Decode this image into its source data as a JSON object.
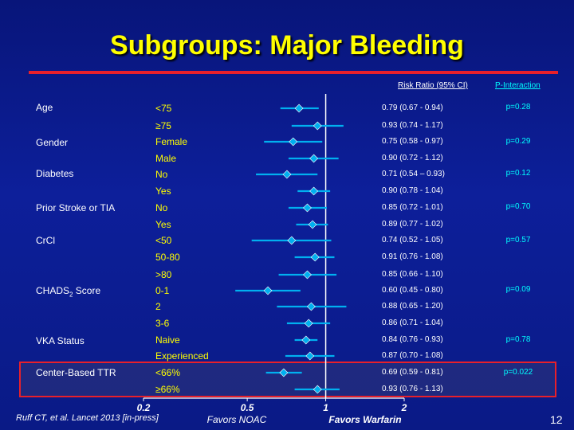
{
  "title": "Subgroups: Major Bleeding",
  "headers": {
    "rr": "Risk Ratio (95% CI)",
    "p": "P-Interaction"
  },
  "citation": "Ruff CT, et al. Lancet 2013 [in-press]",
  "page_number": "12",
  "favors": {
    "left": "Favors NOAC",
    "right": "Favors Warfarin"
  },
  "categories": [
    {
      "label": "Age",
      "p": "p=0.28"
    },
    {
      "label": "Gender",
      "p": "p=0.29"
    },
    {
      "label": "Diabetes",
      "p": "p=0.12"
    },
    {
      "label": "Prior Stroke or TIA",
      "p": "p=0.70"
    },
    {
      "label": "CrCl",
      "p": "p=0.57"
    },
    {
      "label": "CHADS2 Score",
      "p": "p=0.09"
    },
    {
      "label": "VKA Status",
      "p": "p=0.78"
    },
    {
      "label": "Center-Based TTR",
      "p": "p=0.022"
    }
  ],
  "colors": {
    "line": "#00b0f0",
    "title": "#ffff00",
    "highlight": "#e8202a",
    "axis": "#ffffff"
  },
  "chart_data": {
    "type": "forest",
    "xscale": "log",
    "xlim": [
      0.2,
      2
    ],
    "xticks": [
      0.2,
      0.5,
      1,
      2
    ],
    "reference_line": 1,
    "rows": [
      {
        "category": "Age",
        "subgroup": "<75",
        "rr": 0.79,
        "lo": 0.67,
        "hi": 0.94,
        "label": "0.79 (0.67 - 0.94)"
      },
      {
        "category": "Age",
        "subgroup": "≥75",
        "rr": 0.93,
        "lo": 0.74,
        "hi": 1.17,
        "label": "0.93 (0.74 - 1.17)"
      },
      {
        "category": "Gender",
        "subgroup": "Female",
        "rr": 0.75,
        "lo": 0.58,
        "hi": 0.97,
        "label": "0.75 (0.58 - 0.97)"
      },
      {
        "category": "Gender",
        "subgroup": "Male",
        "rr": 0.9,
        "lo": 0.72,
        "hi": 1.12,
        "label": "0.90 (0.72 - 1.12)"
      },
      {
        "category": "Diabetes",
        "subgroup": "No",
        "rr": 0.71,
        "lo": 0.54,
        "hi": 0.93,
        "label": "0.71 (0.54 – 0.93)"
      },
      {
        "category": "Diabetes",
        "subgroup": "Yes",
        "rr": 0.9,
        "lo": 0.78,
        "hi": 1.04,
        "label": "0.90 (0.78 - 1.04)"
      },
      {
        "category": "Prior Stroke or TIA",
        "subgroup": "No",
        "rr": 0.85,
        "lo": 0.72,
        "hi": 1.01,
        "label": "0.85 (0.72 - 1.01)"
      },
      {
        "category": "Prior Stroke or TIA",
        "subgroup": "Yes",
        "rr": 0.89,
        "lo": 0.77,
        "hi": 1.02,
        "label": "0.89 (0.77 - 1.02)"
      },
      {
        "category": "CrCl",
        "subgroup": "<50",
        "rr": 0.74,
        "lo": 0.52,
        "hi": 1.05,
        "label": "0.74 (0.52 - 1.05)"
      },
      {
        "category": "CrCl",
        "subgroup": "50-80",
        "rr": 0.91,
        "lo": 0.76,
        "hi": 1.08,
        "label": "0.91 (0.76 - 1.08)"
      },
      {
        "category": "CrCl",
        "subgroup": ">80",
        "rr": 0.85,
        "lo": 0.66,
        "hi": 1.1,
        "label": "0.85 (0.66 - 1.10)"
      },
      {
        "category": "CHADS2 Score",
        "subgroup": "0-1",
        "rr": 0.6,
        "lo": 0.45,
        "hi": 0.8,
        "label": "0.60 (0.45 - 0.80)"
      },
      {
        "category": "CHADS2 Score",
        "subgroup": "2",
        "rr": 0.88,
        "lo": 0.65,
        "hi": 1.2,
        "label": "0.88 (0.65 - 1.20)"
      },
      {
        "category": "CHADS2 Score",
        "subgroup": "3-6",
        "rr": 0.86,
        "lo": 0.71,
        "hi": 1.04,
        "label": "0.86 (0.71 - 1.04)"
      },
      {
        "category": "VKA Status",
        "subgroup": "Naive",
        "rr": 0.84,
        "lo": 0.76,
        "hi": 0.93,
        "label": "0.84 (0.76 - 0.93)"
      },
      {
        "category": "VKA Status",
        "subgroup": "Experienced",
        "rr": 0.87,
        "lo": 0.7,
        "hi": 1.08,
        "label": "0.87 (0.70 - 1.08)"
      },
      {
        "category": "Center-Based TTR",
        "subgroup": "<66%",
        "rr": 0.69,
        "lo": 0.59,
        "hi": 0.81,
        "label": "0.69 (0.59 - 0.81)"
      },
      {
        "category": "Center-Based TTR",
        "subgroup": "≥66%",
        "rr": 0.93,
        "lo": 0.76,
        "hi": 1.13,
        "label": "0.93 (0.76 - 1.13)"
      }
    ]
  }
}
